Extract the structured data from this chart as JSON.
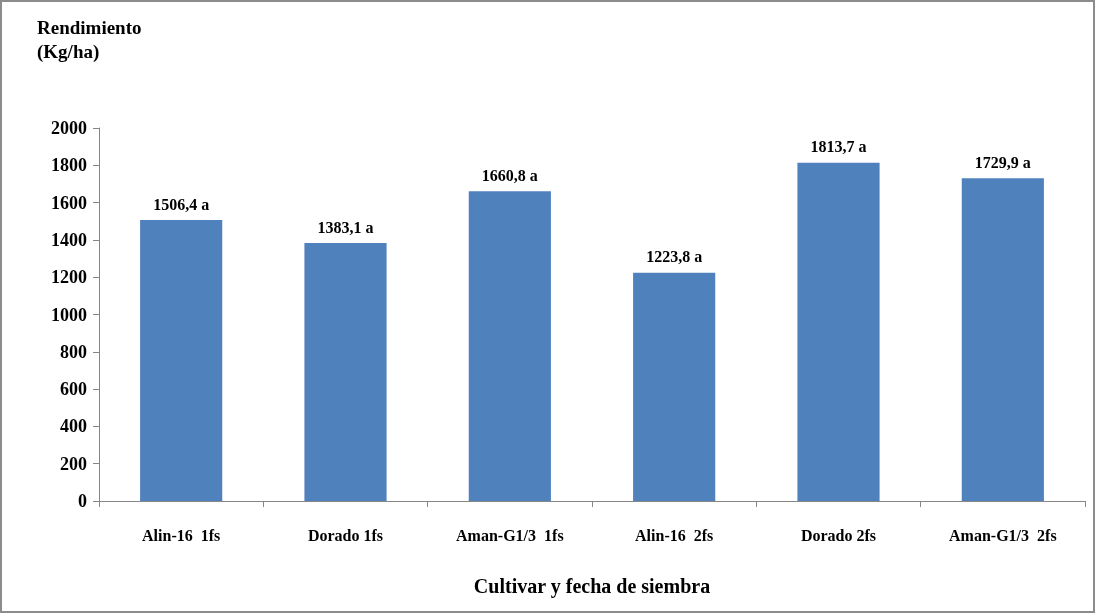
{
  "chart_data": {
    "type": "bar",
    "ylabel": "Rendimiento\n(Kg/ha)",
    "xlabel": "Cultivar y fecha de siembra",
    "categories": [
      "Alin-16  1fs",
      "Dorado 1fs",
      "Aman-G1/3  1fs",
      "Alin-16  2fs",
      "Dorado 2fs",
      "Aman-G1/3  2fs"
    ],
    "values": [
      1506.4,
      1383.1,
      1660.8,
      1223.8,
      1813.7,
      1729.9
    ],
    "value_labels": [
      "1506,4 a",
      "1383,1 a",
      "1660,8 a",
      "1223,8 a",
      "1813,7 a",
      "1729,9 a"
    ],
    "color": "#4f81bd",
    "ylim": [
      0,
      2000
    ],
    "yticks": [
      0,
      200,
      400,
      600,
      800,
      1000,
      1200,
      1400,
      1600,
      1800,
      2000
    ],
    "grid": false
  }
}
